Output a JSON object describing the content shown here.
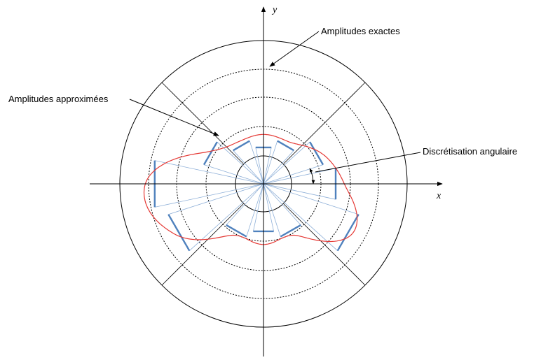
{
  "axes": {
    "x_label": "x",
    "y_label": "y"
  },
  "annotations": {
    "exact": "Amplitudes exactes",
    "approx": "Amplitudes approximées",
    "discretisation": "Discrétisation angulaire"
  },
  "colors": {
    "exact_curve": "#e53935",
    "approx_segments": "#4f81bd",
    "rays": "#8fb0d8",
    "circles": "#000000",
    "axes": "#000000"
  },
  "approx_amplitudes": [
    0.85,
    0.72,
    0.52,
    0.43,
    0.52,
    0.72,
    1.28,
    1.15,
    0.64,
    0.56,
    0.64,
    1.15
  ]
}
